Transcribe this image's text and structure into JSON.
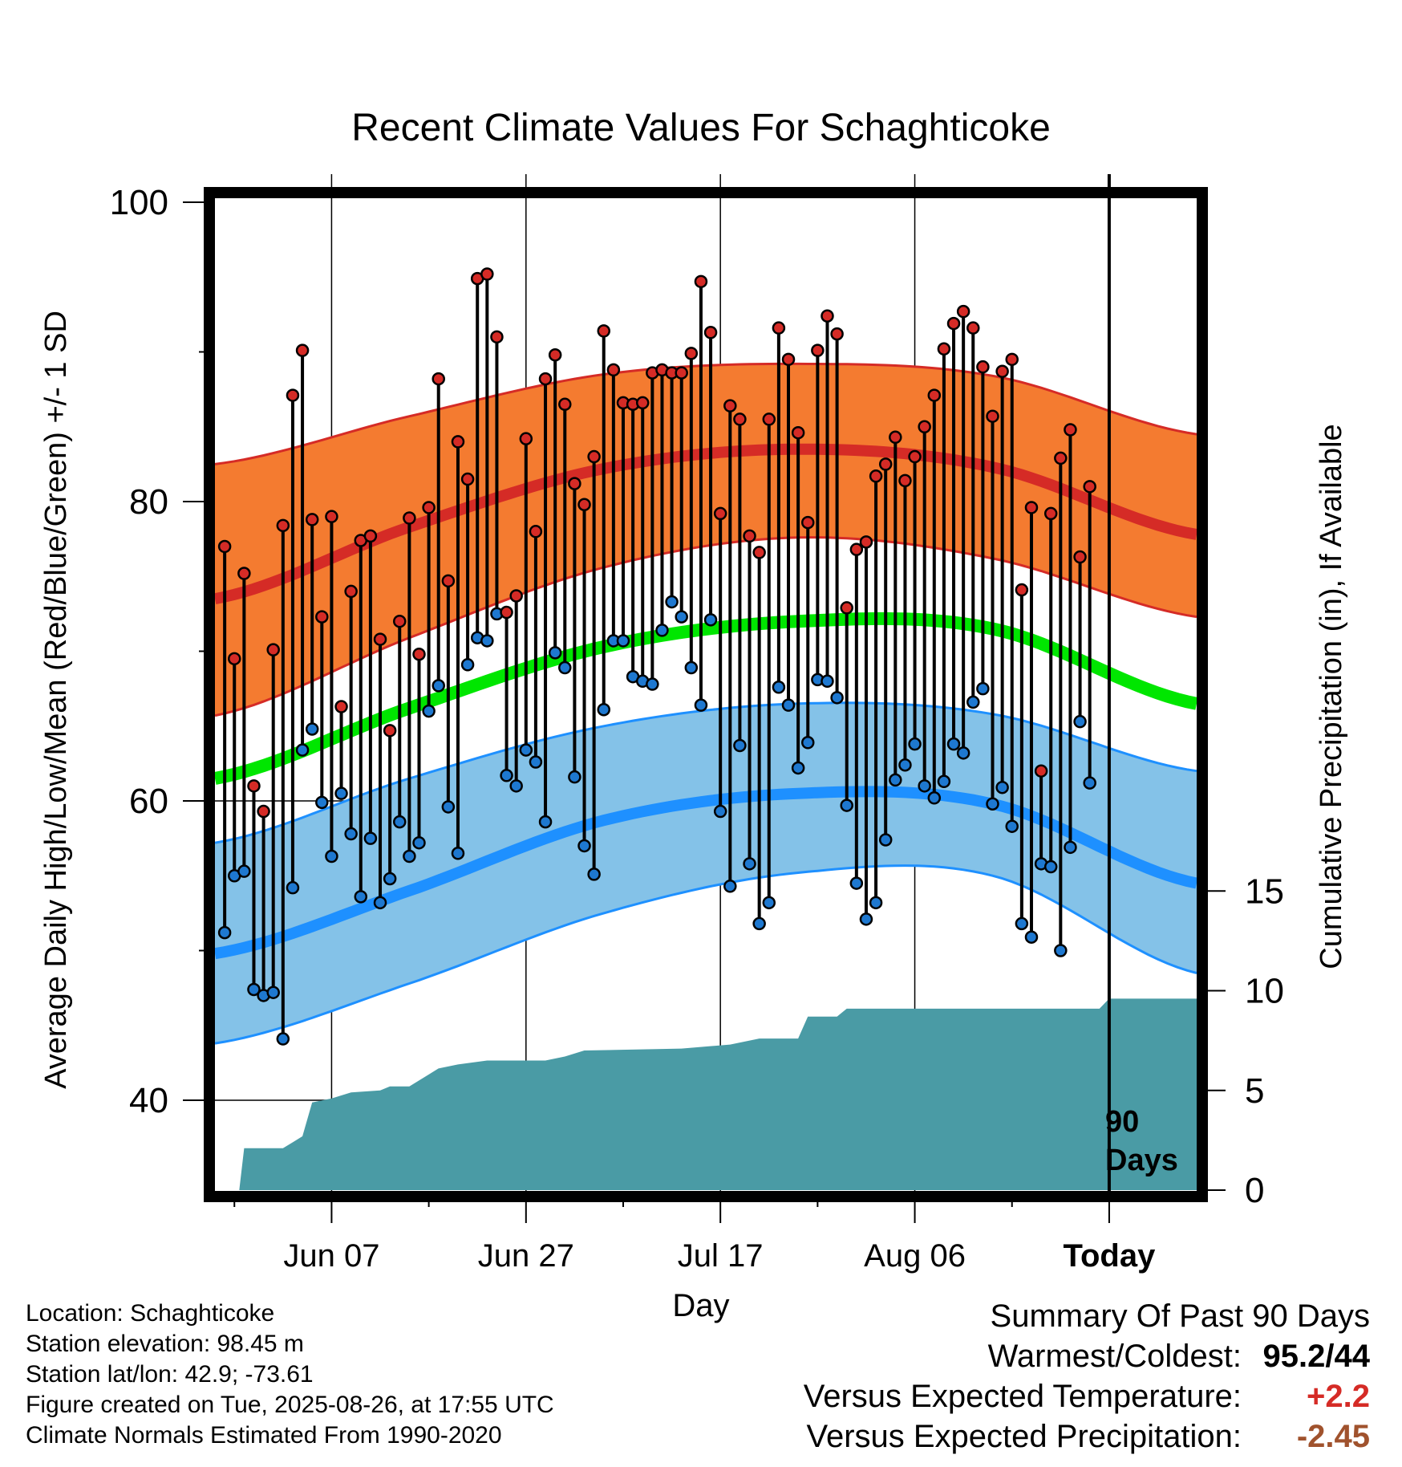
{
  "chart_data": {
    "type": "line",
    "title": "Recent Climate Values For Schaghticoke",
    "xlabel": "Day",
    "ylabel": "Average Daily High/Low/Mean (Red/Blue/Green) +/- 1 SD",
    "y2label": "Cumulative Precipitation (in), If Available",
    "ylim": [
      34.5,
      100
    ],
    "y_ticks": [
      40,
      60,
      80,
      100
    ],
    "y2lim": [
      0,
      50
    ],
    "y2_ticks": [
      0,
      5,
      10,
      15
    ],
    "x_start": "May 27",
    "x_end": "Sep 06",
    "x_tick_labels": [
      "Jun 07",
      "Jun 27",
      "Jul 17",
      "Aug 06",
      "Today"
    ],
    "grid": true,
    "today_label_line1": "90",
    "today_label_line2": "Days",
    "colors": {
      "high_band": "#f47b30",
      "high_band_edge": "#d52b26",
      "high_normal": "#d52b26",
      "low_band": "#84c2e8",
      "low_band_edge": "#1e90ff",
      "low_normal": "#1e90ff",
      "mean_normal": "#00e600",
      "precip": "#4a9ba5",
      "high_dot": "#d52b26",
      "low_dot": "#1e78d0"
    },
    "normals": {
      "days": [
        0,
        20,
        40,
        60,
        80,
        101
      ],
      "high_mean": [
        73.5,
        78.3,
        82.2,
        83.5,
        82.3,
        77.8
      ],
      "high_sd_upper": [
        82.5,
        85.7,
        88.5,
        89.2,
        88.4,
        84.5
      ],
      "high_sd_lower": [
        65.7,
        70.9,
        75.6,
        77.6,
        76.2,
        72.3
      ],
      "mean": [
        61.5,
        66.2,
        70.3,
        72.0,
        71.5,
        66.5
      ],
      "low_mean": [
        49.8,
        54.0,
        58.7,
        60.5,
        59.8,
        54.5
      ],
      "low_sd_upper": [
        57.2,
        61.5,
        65.0,
        66.5,
        65.8,
        62.0
      ],
      "low_sd_lower": [
        43.8,
        47.8,
        52.5,
        55.2,
        55.0,
        48.5
      ]
    },
    "series": [
      {
        "name": "High",
        "values": [
          77,
          69.5,
          75.2,
          61,
          59.3,
          70.1,
          78.4,
          87.1,
          90.1,
          78.8,
          72.3,
          79,
          66.3,
          74,
          77.4,
          77.7,
          70.8,
          64.7,
          72,
          78.9,
          69.8,
          79.6,
          88.2,
          74.7,
          84,
          81.5,
          94.9,
          95.2,
          91,
          72.6,
          73.7,
          84.2,
          78,
          88.2,
          89.8,
          86.5,
          81.2,
          79.8,
          83,
          91.4,
          88.8,
          86.6,
          86.5,
          86.6,
          88.6,
          88.8,
          88.6,
          88.6,
          89.9,
          94.7,
          91.3,
          79.2,
          86.4,
          85.5,
          77.7,
          76.6,
          85.5,
          91.6,
          89.5,
          84.6,
          78.6,
          90.1,
          92.4,
          91.2,
          72.9,
          76.8,
          77.3,
          81.7,
          82.5,
          84.3,
          81.4,
          83,
          85,
          87.1,
          90.2,
          91.9,
          92.7,
          91.6,
          89,
          85.7,
          88.7,
          89.5,
          74.1,
          79.6,
          62,
          79.2,
          82.9,
          84.8,
          76.3,
          81
        ],
        "lows": [
          51.2,
          55,
          55.3,
          47.4,
          47,
          47.2,
          44.1,
          54.2,
          63.4,
          64.8,
          59.9,
          56.3,
          60.5,
          57.8,
          53.6,
          57.5,
          53.2,
          54.8,
          58.6,
          56.3,
          57.2,
          66,
          67.7,
          59.6,
          56.5,
          69.1,
          70.9,
          70.7,
          72.5,
          61.7,
          61,
          63.4,
          62.6,
          58.6,
          69.9,
          68.9,
          61.6,
          57,
          55.1,
          66.1,
          70.7,
          70.7,
          68.3,
          68,
          67.8,
          71.4,
          73.3,
          72.3,
          68.9,
          66.4,
          72.1,
          59.3,
          54.3,
          63.7,
          55.8,
          51.8,
          53.2,
          67.6,
          66.4,
          62.2,
          63.9,
          68.1,
          68,
          66.9,
          59.7,
          54.5,
          52.1,
          53.2,
          57.4,
          61.4,
          62.4,
          63.8,
          61,
          60.2,
          61.3,
          63.8,
          63.2,
          66.6,
          67.5,
          59.8,
          60.9,
          58.3,
          51.8,
          50.9,
          55.8,
          55.6,
          50,
          56.9,
          65.3,
          61.2
        ]
      }
    ],
    "precip_cumulative": [
      [
        0,
        0
      ],
      [
        2.5,
        0
      ],
      [
        3,
        2.1
      ],
      [
        7,
        2.1
      ],
      [
        8,
        2.4
      ],
      [
        9,
        2.7
      ],
      [
        10,
        4.4
      ],
      [
        12,
        4.6
      ],
      [
        14,
        4.9
      ],
      [
        17,
        5
      ],
      [
        18,
        5.2
      ],
      [
        20,
        5.2
      ],
      [
        22,
        5.8
      ],
      [
        23,
        6.1
      ],
      [
        25,
        6.3
      ],
      [
        28,
        6.5
      ],
      [
        34,
        6.5
      ],
      [
        36,
        6.7
      ],
      [
        38,
        7
      ],
      [
        48,
        7.1
      ],
      [
        53,
        7.3
      ],
      [
        56,
        7.6
      ],
      [
        60,
        7.6
      ],
      [
        61,
        8.7
      ],
      [
        64,
        8.7
      ],
      [
        65,
        9.1
      ],
      [
        91,
        9.1
      ],
      [
        92,
        9.6
      ],
      [
        101,
        9.6
      ]
    ]
  },
  "footer": {
    "location": "Location: Schaghticoke",
    "elevation": "Station elevation: 98.45 m",
    "latlon": "Station lat/lon: 42.9; -73.61",
    "created": "Figure created on Tue, 2025-08-26, at 17:55 UTC",
    "normals": "Climate Normals Estimated From 1990-2020"
  },
  "summary": {
    "title": "Summary Of Past 90 Days",
    "warmest_label": "Warmest/Coldest:",
    "warmest_value": "95.2/44",
    "temp_label": "Versus Expected Temperature:",
    "temp_value": "+2.2",
    "temp_color": "#d52b26",
    "precip_label": "Versus Expected Precipitation:",
    "precip_value": "-2.45",
    "precip_color": "#a0522d"
  }
}
